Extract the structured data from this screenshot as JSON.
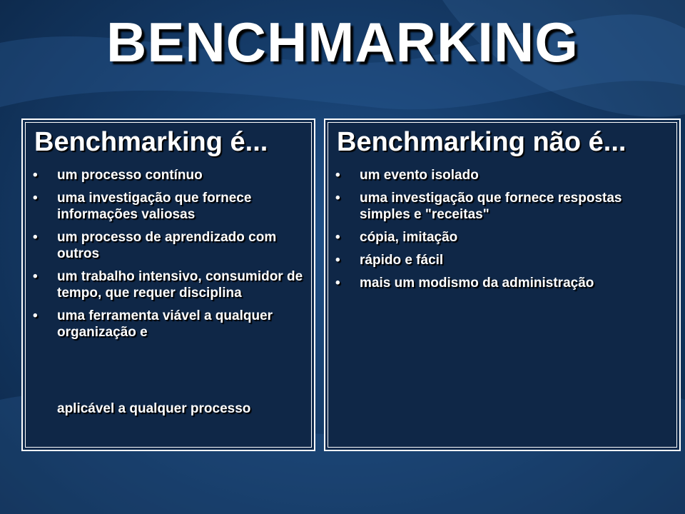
{
  "title": "BENCHMARKING",
  "left_panel": {
    "heading": "Benchmarking é...",
    "items": [
      "um processo contínuo",
      "uma investigação que fornece informações valiosas",
      "um processo de aprendizado com outros",
      "um trabalho intensivo, consumidor de tempo, que requer disciplina",
      "uma ferramenta viável a qualquer organização e"
    ],
    "continuation": "aplicável a qualquer processo"
  },
  "right_panel": {
    "heading": "Benchmarking não é...",
    "items": [
      "um evento isolado",
      "uma investigação que fornece respostas simples e \"receitas\"",
      "cópia, imitação",
      "rápido e fácil",
      "mais um modismo da administração"
    ]
  },
  "bullet_symbol": "•",
  "colors": {
    "background": "#163d6b",
    "text": "#ffffff",
    "panel": "#0f2747"
  }
}
